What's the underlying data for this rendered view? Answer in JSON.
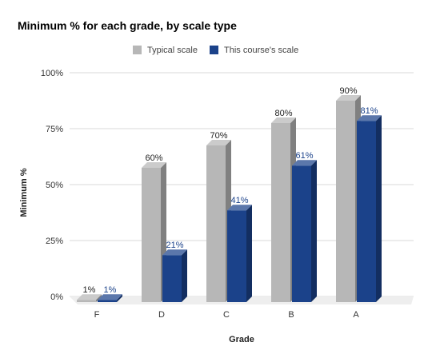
{
  "chart_data": {
    "type": "bar",
    "title": "Minimum % for each grade, by scale type",
    "xlabel": "Grade",
    "ylabel": "Minimum %",
    "categories": [
      "F",
      "D",
      "C",
      "B",
      "A"
    ],
    "series": [
      {
        "name": "Typical scale",
        "values": [
          1,
          60,
          70,
          80,
          90
        ],
        "labels": [
          "1%",
          "60%",
          "70%",
          "80%",
          "90%"
        ],
        "color": "#b7b7b7",
        "label_color": "#222222"
      },
      {
        "name": "This course's scale",
        "values": [
          1,
          21,
          41,
          61,
          81
        ],
        "labels": [
          "1%",
          "21%",
          "41%",
          "61%",
          "81%"
        ],
        "color": "#1b428a",
        "label_color": "#1b428a"
      }
    ],
    "ylim": [
      0,
      100
    ],
    "yticks": [
      0,
      25,
      50,
      75,
      100
    ],
    "ytick_labels": [
      "0%",
      "25%",
      "50%",
      "75%",
      "100%"
    ],
    "grid": true,
    "legend_position": "top-center"
  }
}
